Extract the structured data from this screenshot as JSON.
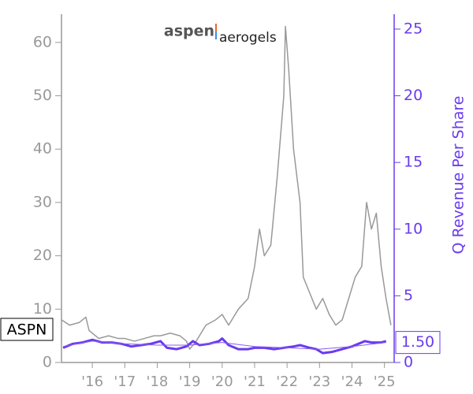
{
  "chart_data": {
    "type": "line",
    "logo": {
      "left": "aspen",
      "right": "aerogels"
    },
    "ticker": "ASPN",
    "y2label": "Q Revenue Per Share",
    "y2_marker": {
      "value": 1.5,
      "label": "1.50"
    },
    "xlim": [
      2015.05,
      2025.3
    ],
    "xticks": [
      {
        "value": 2016,
        "label": "'16"
      },
      {
        "value": 2017,
        "label": "'17"
      },
      {
        "value": 2018,
        "label": "'18"
      },
      {
        "value": 2019,
        "label": "'19"
      },
      {
        "value": 2020,
        "label": "'20"
      },
      {
        "value": 2021,
        "label": "'21"
      },
      {
        "value": 2022,
        "label": "'22"
      },
      {
        "value": 2023,
        "label": "'23"
      },
      {
        "value": 2024,
        "label": "'24"
      },
      {
        "value": 2025,
        "label": "'25"
      }
    ],
    "ylim": [
      0,
      65
    ],
    "yticks": [
      0,
      10,
      20,
      30,
      40,
      50,
      60
    ],
    "y2lim": [
      0,
      26
    ],
    "y2ticks": [
      0,
      5,
      10,
      15,
      20,
      25
    ],
    "series": [
      {
        "color": "#999999",
        "width": 1.5,
        "x": [
          2015.05,
          2015.3,
          2015.6,
          2015.8,
          2015.9,
          2016.2,
          2016.5,
          2016.8,
          2017.0,
          2017.3,
          2017.6,
          2017.9,
          2018.1,
          2018.4,
          2018.7,
          2018.9,
          2019.0,
          2019.2,
          2019.5,
          2019.8,
          2020.0,
          2020.2,
          2020.5,
          2020.8,
          2021.0,
          2021.15,
          2021.3,
          2021.5,
          2021.7,
          2021.9,
          2021.95,
          2022.05,
          2022.2,
          2022.4,
          2022.5,
          2022.7,
          2022.9,
          2023.1,
          2023.3,
          2023.5,
          2023.7,
          2023.9,
          2024.1,
          2024.3,
          2024.45,
          2024.6,
          2024.75,
          2024.9,
          2025.05,
          2025.2
        ],
        "values": [
          8,
          7,
          7.5,
          8.5,
          6,
          4.5,
          5,
          4.5,
          4.5,
          4,
          4.5,
          5,
          5,
          5.5,
          5,
          4,
          2.5,
          4,
          7,
          8,
          9,
          7,
          10,
          12,
          18,
          25,
          20,
          22,
          35,
          50,
          63,
          55,
          40,
          30,
          16,
          13,
          10,
          12,
          9,
          7,
          8,
          12,
          16,
          18,
          30,
          25,
          28,
          18,
          12,
          7
        ]
      },
      {
        "color": "#6a3bf0",
        "width": 3,
        "axis": "y2",
        "x": [
          2015.1,
          2015.4,
          2015.7,
          2016.0,
          2016.3,
          2016.6,
          2016.9,
          2017.2,
          2017.5,
          2017.8,
          2018.1,
          2018.3,
          2018.6,
          2018.9,
          2019.1,
          2019.3,
          2019.6,
          2019.9,
          2020.0,
          2020.2,
          2020.5,
          2020.8,
          2021.0,
          2021.3,
          2021.6,
          2021.9,
          2022.2,
          2022.4,
          2022.7,
          2022.9,
          2023.1,
          2023.4,
          2023.7,
          2024.0,
          2024.2,
          2024.4,
          2024.6,
          2024.9,
          2025.05
        ],
        "values": [
          1.1,
          1.4,
          1.5,
          1.7,
          1.5,
          1.5,
          1.4,
          1.2,
          1.3,
          1.4,
          1.6,
          1.1,
          1.0,
          1.2,
          1.6,
          1.3,
          1.4,
          1.6,
          1.8,
          1.3,
          1.0,
          1.0,
          1.1,
          1.1,
          1.0,
          1.1,
          1.2,
          1.3,
          1.1,
          1.0,
          0.7,
          0.8,
          1.0,
          1.2,
          1.4,
          1.6,
          1.5,
          1.5,
          1.6
        ]
      },
      {
        "color": "#8a5ce8",
        "width": 1,
        "axis": "y2",
        "x": [
          2015.1,
          2016.0,
          2017.0,
          2018.0,
          2019.0,
          2020.0,
          2021.0,
          2022.0,
          2023.0,
          2024.0,
          2025.05
        ],
        "values": [
          1.2,
          1.6,
          1.4,
          1.3,
          1.3,
          1.5,
          1.2,
          1.1,
          1.0,
          1.2,
          1.5
        ]
      }
    ]
  }
}
